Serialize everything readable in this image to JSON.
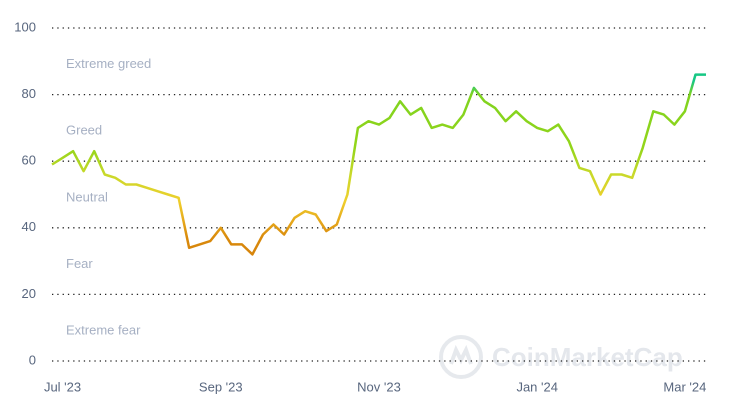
{
  "chart_data": {
    "type": "line",
    "categories": [
      null,
      "Jul '23",
      null,
      null,
      null,
      null,
      null,
      null,
      null,
      null,
      null,
      null,
      null,
      null,
      null,
      null,
      "Sep '23",
      null,
      null,
      null,
      null,
      null,
      null,
      null,
      null,
      null,
      null,
      null,
      null,
      null,
      null,
      "Nov '23",
      null,
      null,
      null,
      null,
      null,
      null,
      null,
      null,
      null,
      null,
      null,
      null,
      null,
      null,
      "Jan '24",
      null,
      null,
      null,
      null,
      null,
      null,
      null,
      null,
      null,
      null,
      null,
      null,
      null,
      "Mar '24",
      null,
      null
    ],
    "values": [
      59,
      61,
      63,
      57,
      63,
      56,
      55,
      53,
      53,
      52,
      51,
      50,
      49,
      34,
      35,
      36,
      40,
      35,
      35,
      32,
      38,
      41,
      38,
      43,
      45,
      44,
      39,
      41,
      50,
      70,
      72,
      71,
      73,
      78,
      74,
      76,
      70,
      71,
      70,
      74,
      82,
      78,
      76,
      72,
      75,
      72,
      70,
      69,
      71,
      66,
      58,
      57,
      50,
      56,
      56,
      55,
      64,
      75,
      74,
      71,
      75,
      86,
      86
    ],
    "ylim": [
      0,
      100
    ],
    "yticks": [
      0,
      20,
      40,
      60,
      80,
      100
    ],
    "grid": true,
    "annotations": [
      "Extreme greed",
      "Greed",
      "Neutral",
      "Fear",
      "Extreme fear"
    ],
    "watermark": "CoinMarketCap"
  }
}
